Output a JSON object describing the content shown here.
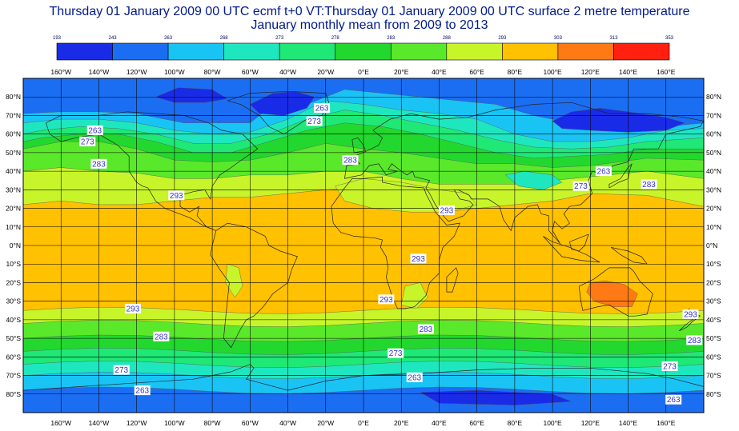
{
  "title": {
    "line1": "Thursday 01 January 2009 00 UTC ecmf t+0 VT:Thursday 01 January 2009 00 UTC surface  2 metre temperature",
    "line2": "January monthly mean from 2009 to 2013"
  },
  "colorbar": {
    "bounds": [
      "193",
      "243",
      "263",
      "268",
      "273",
      "278",
      "283",
      "288",
      "293",
      "303",
      "313",
      "353"
    ],
    "colors": [
      "#1a2be8",
      "#1b6ef2",
      "#19c4f5",
      "#1ee7c0",
      "#1fe876",
      "#22d82e",
      "#5ae82a",
      "#c8f529",
      "#ffc100",
      "#ff7a14",
      "#ff2010"
    ]
  },
  "map": {
    "projection": "cylindrical",
    "grid_lines": true,
    "lon_labels": [
      "160°W",
      "140°W",
      "120°W",
      "100°W",
      "80°W",
      "60°W",
      "40°W",
      "20°W",
      "0°E",
      "20°E",
      "40°E",
      "60°E",
      "80°E",
      "100°E",
      "120°E",
      "140°E",
      "160°E"
    ],
    "lat_labels": [
      "80°N",
      "70°N",
      "60°N",
      "50°N",
      "40°N",
      "30°N",
      "20°N",
      "10°N",
      "0°N",
      "10°S",
      "20°S",
      "30°S",
      "40°S",
      "50°S",
      "60°S",
      "70°S",
      "80°S"
    ],
    "contour_labels": [
      {
        "text": "263",
        "lon": -142,
        "lat": 62
      },
      {
        "text": "273",
        "lon": -146,
        "lat": 56
      },
      {
        "text": "283",
        "lon": -140,
        "lat": 44
      },
      {
        "text": "293",
        "lon": -99,
        "lat": 27
      },
      {
        "text": "263",
        "lon": -22,
        "lat": 74
      },
      {
        "text": "273",
        "lon": -26,
        "lat": 67
      },
      {
        "text": "283",
        "lon": -7,
        "lat": 46
      },
      {
        "text": "293",
        "lon": 44,
        "lat": 19
      },
      {
        "text": "293",
        "lon": 29,
        "lat": -7
      },
      {
        "text": "293",
        "lon": 12,
        "lat": -29
      },
      {
        "text": "263",
        "lon": 127,
        "lat": 40
      },
      {
        "text": "273",
        "lon": 115,
        "lat": 32
      },
      {
        "text": "283",
        "lon": 151,
        "lat": 33
      },
      {
        "text": "293",
        "lon": -122,
        "lat": -34
      },
      {
        "text": "283",
        "lon": -107,
        "lat": -49
      },
      {
        "text": "283",
        "lon": 33,
        "lat": -45
      },
      {
        "text": "273",
        "lon": 17,
        "lat": -58
      },
      {
        "text": "273",
        "lon": -128,
        "lat": -67
      },
      {
        "text": "263",
        "lon": 27,
        "lat": -71
      },
      {
        "text": "263",
        "lon": -117,
        "lat": -78
      },
      {
        "text": "293",
        "lon": 173,
        "lat": -37
      },
      {
        "text": "283",
        "lon": 175,
        "lat": -51
      },
      {
        "text": "273",
        "lon": 162,
        "lat": -65
      },
      {
        "text": "263",
        "lon": 164,
        "lat": -83
      }
    ]
  }
}
